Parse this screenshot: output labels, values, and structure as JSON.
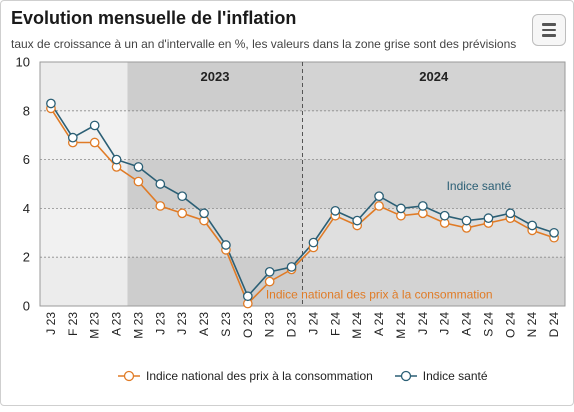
{
  "header": {
    "title": "Evolution mensuelle de l'inflation",
    "subtitle": "taux de croissance à un an d'intervalle en %, les valeurs dans la zone grise sont des prévisions"
  },
  "menu": {
    "icon": "hamburger-menu-icon"
  },
  "colors": {
    "series_1": "#e07b26",
    "series_2": "#2b5f75",
    "band_light": "#ececec",
    "band_forecast": "#cdcdcd",
    "band_2024": "#d3d3d3",
    "stripe": "#dedede"
  },
  "chart_data": {
    "type": "line",
    "title": "Evolution mensuelle de l'inflation",
    "subtitle": "taux de croissance à un an d'intervalle en %, les valeurs dans la zone grise sont des prévisions",
    "categories": [
      "J 23",
      "F 23",
      "M 23",
      "A 23",
      "M 23",
      "J 23",
      "J 23",
      "A 23",
      "S 23",
      "O 23",
      "N 23",
      "D 23",
      "J 24",
      "F 24",
      "M 24",
      "A 24",
      "M 24",
      "J 24",
      "J 24",
      "A 24",
      "S 24",
      "O 24",
      "N 24",
      "D 24"
    ],
    "ylim": [
      0,
      10
    ],
    "yticks": [
      "0",
      "2",
      "4",
      "6",
      "8",
      "10"
    ],
    "grid": true,
    "year_labels": [
      "2023",
      "2024"
    ],
    "forecast_start_index": 4,
    "series": [
      {
        "name": "Indice national des prix à la consommation",
        "inline_label": "Indice national des prix à la consommation",
        "values": [
          8.1,
          6.7,
          6.7,
          5.7,
          5.1,
          4.1,
          3.8,
          3.5,
          2.3,
          0.1,
          1.0,
          1.5,
          2.4,
          3.7,
          3.3,
          4.1,
          3.7,
          3.8,
          3.4,
          3.2,
          3.4,
          3.6,
          3.1,
          2.8
        ]
      },
      {
        "name": "Indice santé",
        "inline_label": "Indice santé",
        "values": [
          8.3,
          6.9,
          7.4,
          6.0,
          5.7,
          5.0,
          4.5,
          3.8,
          2.5,
          0.4,
          1.4,
          1.6,
          2.6,
          3.9,
          3.5,
          4.5,
          4.0,
          4.1,
          3.7,
          3.5,
          3.6,
          3.8,
          3.3,
          3.0
        ]
      }
    ],
    "legend": [
      "Indice national des prix à la consommation",
      "Indice santé"
    ],
    "legend_position": "bottom"
  }
}
